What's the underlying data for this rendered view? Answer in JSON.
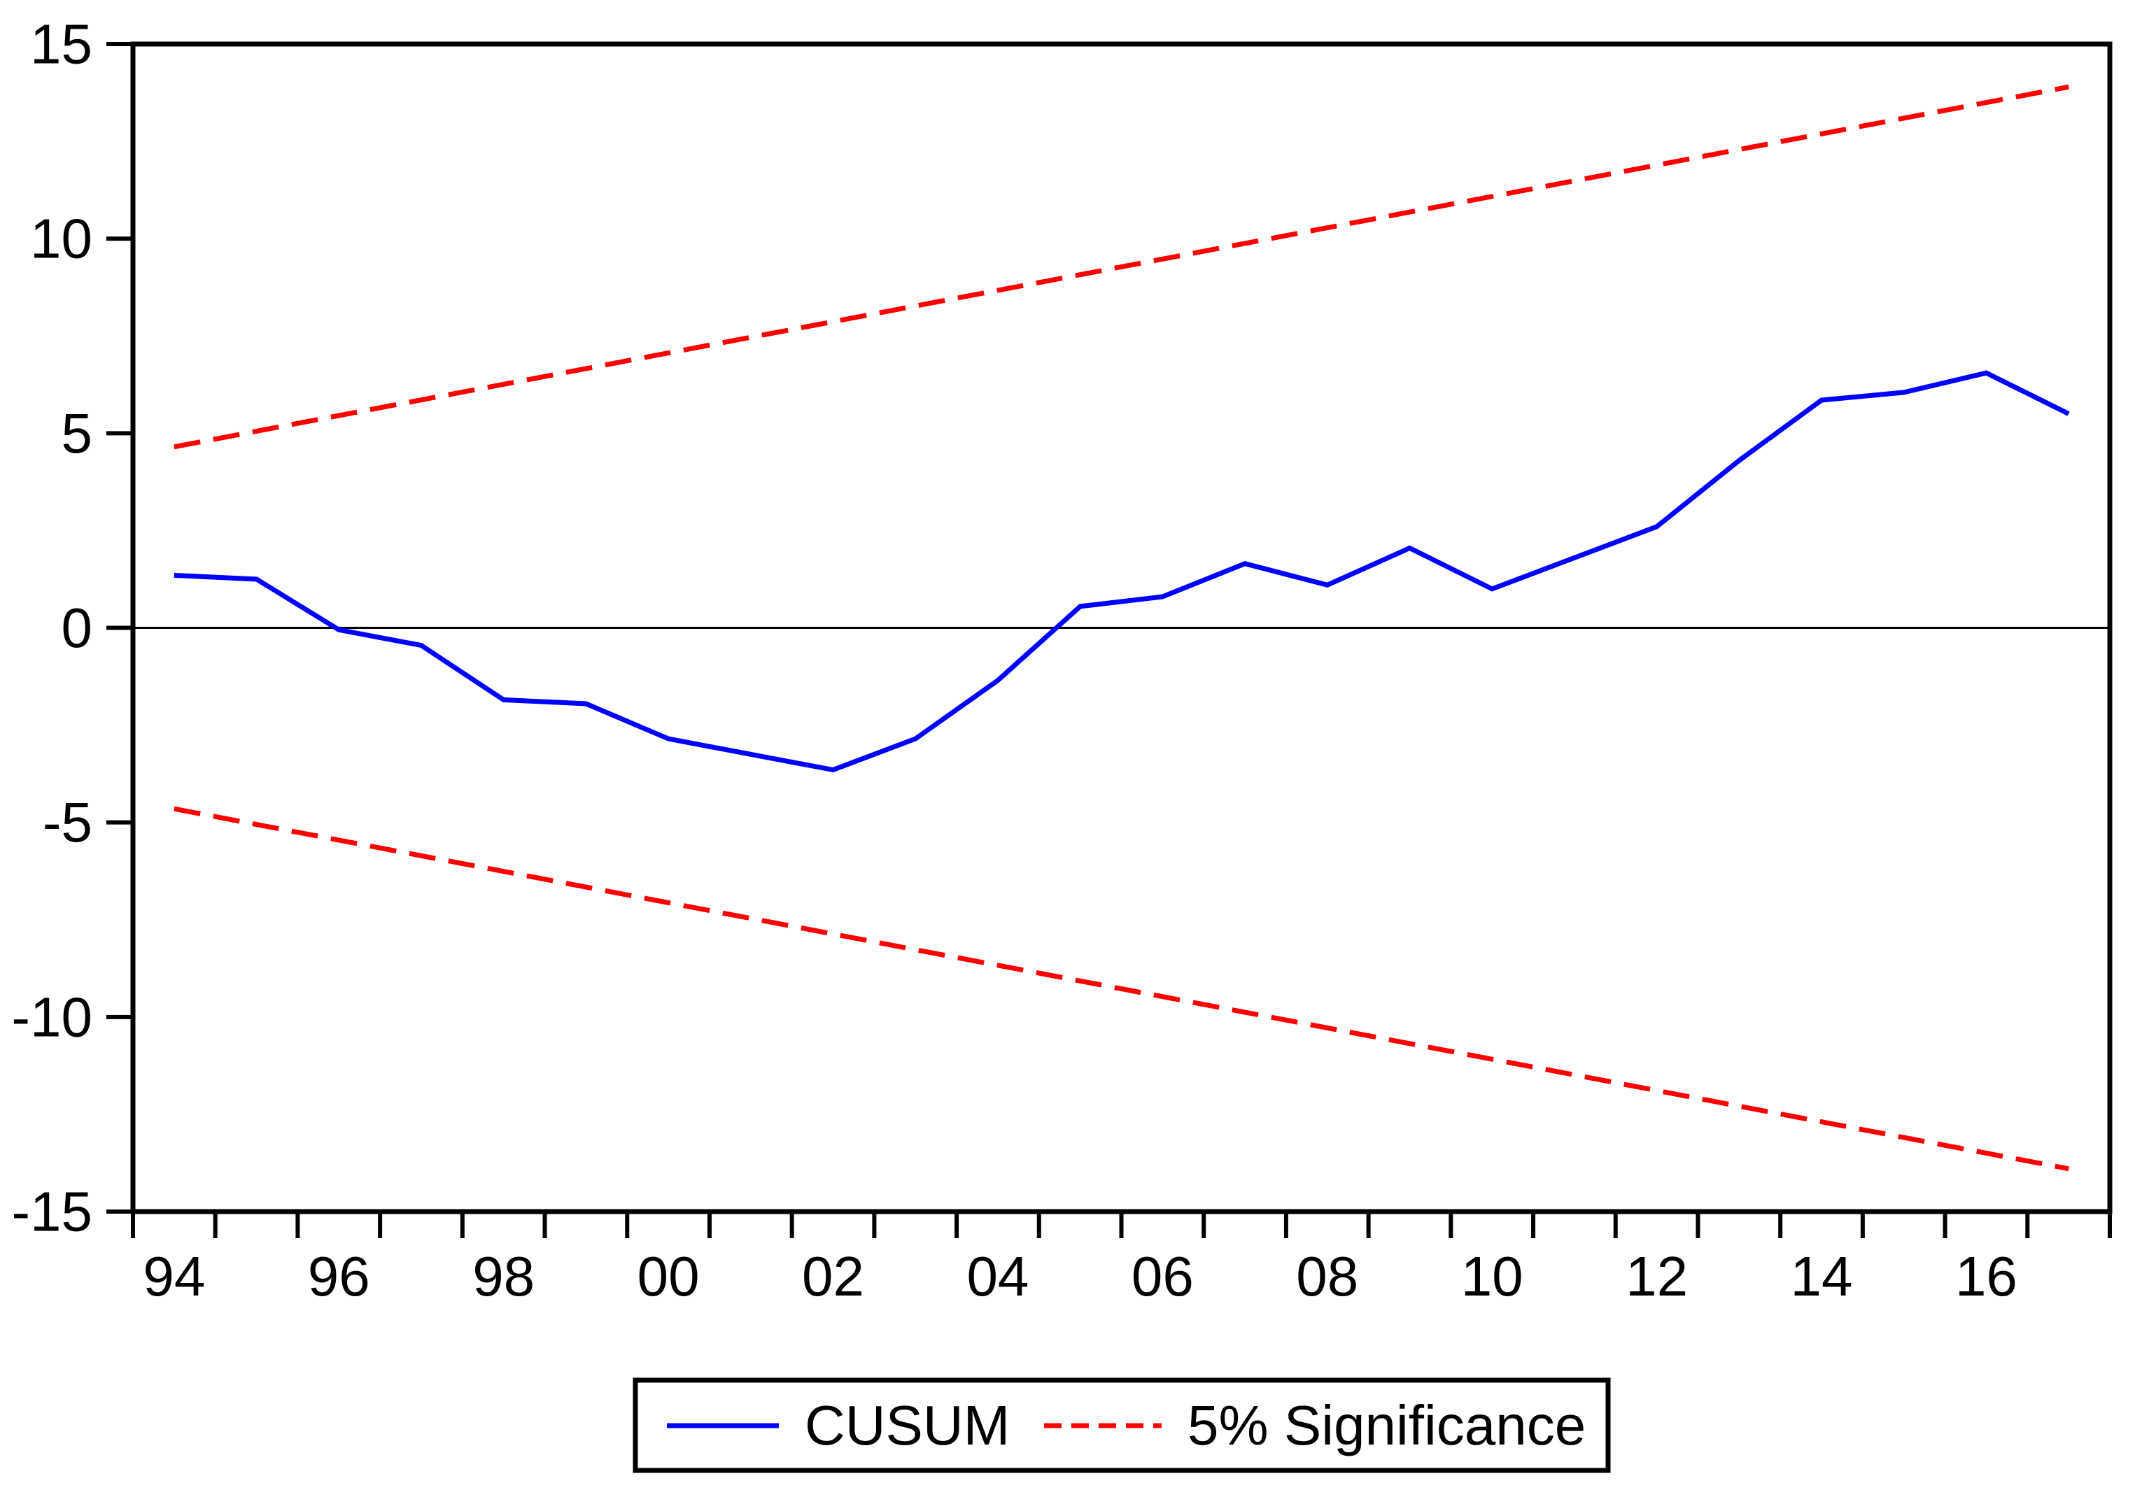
{
  "chart_data": {
    "type": "line",
    "title": "",
    "xlabel": "",
    "ylabel": "",
    "ylim": [
      -15,
      15
    ],
    "yticks": [
      -15,
      -10,
      -5,
      0,
      5,
      10,
      15
    ],
    "ytick_labels": [
      "-15",
      "-10",
      "-5",
      "0",
      "5",
      "10",
      "15"
    ],
    "x_years": [
      1994,
      1995,
      1996,
      1997,
      1998,
      1999,
      2000,
      2001,
      2002,
      2003,
      2004,
      2005,
      2006,
      2007,
      2008,
      2009,
      2010,
      2011,
      2012,
      2013,
      2014,
      2015,
      2016,
      2017
    ],
    "xtick_labels": [
      "94",
      "96",
      "98",
      "00",
      "02",
      "04",
      "06",
      "08",
      "10",
      "12",
      "14",
      "16"
    ],
    "xtick_label_year_indices": [
      0,
      2,
      4,
      6,
      8,
      10,
      12,
      14,
      16,
      18,
      20,
      22
    ],
    "grid": false,
    "zero_line": true,
    "legend_position": "bottom-center",
    "series": [
      {
        "name": "CUSUM",
        "color": "#0000ff",
        "style": "solid",
        "values": [
          1.35,
          1.25,
          -0.05,
          -0.45,
          -1.85,
          -1.95,
          -2.85,
          -3.25,
          -3.65,
          -2.85,
          -1.35,
          0.55,
          0.8,
          1.65,
          1.1,
          2.05,
          1.0,
          1.8,
          2.6,
          4.3,
          5.85,
          6.05,
          6.55,
          5.5
        ]
      },
      {
        "name": "5% Significance (upper bound)",
        "color": "#ff0000",
        "style": "dashed",
        "x_endpoints": [
          1994,
          2017
        ],
        "values": [
          4.65,
          13.9
        ]
      },
      {
        "name": "5% Significance (lower bound)",
        "color": "#ff0000",
        "style": "dashed",
        "x_endpoints": [
          1994,
          2017
        ],
        "values": [
          -4.65,
          -13.9
        ]
      }
    ]
  },
  "legend": {
    "entries": [
      {
        "label": "CUSUM",
        "color": "#0000ff",
        "style": "solid"
      },
      {
        "label": "5% Significance",
        "color": "#ff0000",
        "style": "dashed"
      }
    ]
  },
  "colors": {
    "frame": "#000000",
    "background": "#ffffff",
    "cusum": "#0000ff",
    "significance": "#ff0000"
  }
}
